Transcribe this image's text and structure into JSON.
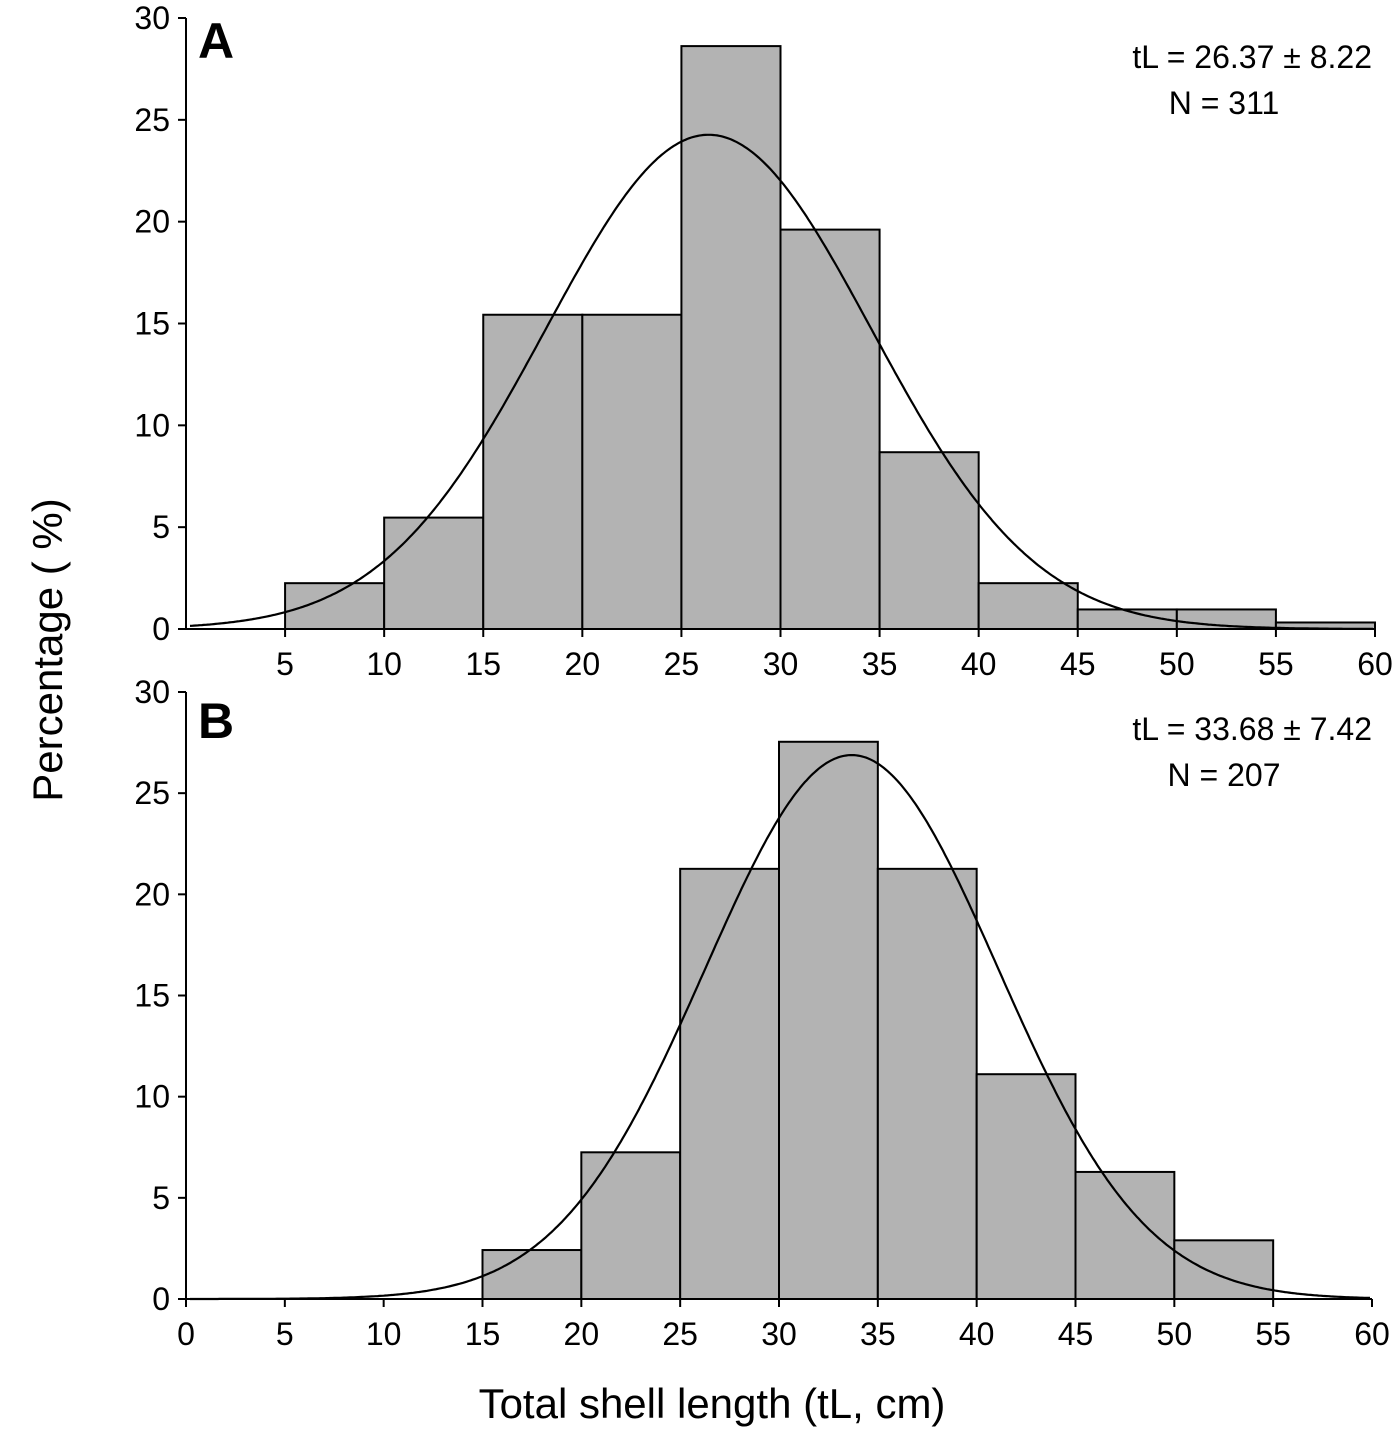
{
  "chart_data": {
    "type": "bar",
    "ylabel": "Percentage ( %)",
    "xlabel": "Total shell length (tL, cm)",
    "bar_color": "#b3b3b3",
    "edge_color": "#000000",
    "curve_color": "#000000",
    "panels": [
      {
        "label": "A",
        "stat_line1": "tL = 26.37 ± 8.22",
        "stat_line2": "N = 311",
        "xlim": [
          0,
          60
        ],
        "ylim": [
          0,
          30
        ],
        "xticks": [
          "5",
          "10",
          "15",
          "20",
          "25",
          "30",
          "35",
          "40",
          "45",
          "50",
          "55",
          "60"
        ],
        "xtick_values": [
          5,
          10,
          15,
          20,
          25,
          30,
          35,
          40,
          45,
          50,
          55,
          60
        ],
        "yticks": [
          "0",
          "5",
          "10",
          "15",
          "20",
          "25",
          "30"
        ],
        "bins": [
          [
            5,
            10
          ],
          [
            10,
            15
          ],
          [
            15,
            20
          ],
          [
            20,
            25
          ],
          [
            25,
            30
          ],
          [
            30,
            35
          ],
          [
            35,
            40
          ],
          [
            40,
            45
          ],
          [
            45,
            50
          ],
          [
            50,
            55
          ],
          [
            55,
            60
          ]
        ],
        "values": [
          2.25,
          5.47,
          15.43,
          15.43,
          28.62,
          19.61,
          8.68,
          2.25,
          0.96,
          0.96,
          0.32
        ],
        "normal_fit": {
          "mean": 26.37,
          "sd": 8.22
        }
      },
      {
        "label": "B",
        "stat_line1": "tL = 33.68 ± 7.42",
        "stat_line2": "N = 207",
        "xlim": [
          0,
          60
        ],
        "ylim": [
          0,
          30
        ],
        "xticks": [
          "0",
          "5",
          "10",
          "15",
          "20",
          "25",
          "30",
          "35",
          "40",
          "45",
          "50",
          "55",
          "60"
        ],
        "xtick_values": [
          0,
          5,
          10,
          15,
          20,
          25,
          30,
          35,
          40,
          45,
          50,
          55,
          60
        ],
        "yticks": [
          "0",
          "5",
          "10",
          "15",
          "20",
          "25",
          "30"
        ],
        "bins": [
          [
            15,
            20
          ],
          [
            20,
            25
          ],
          [
            25,
            30
          ],
          [
            30,
            35
          ],
          [
            35,
            40
          ],
          [
            40,
            45
          ],
          [
            45,
            50
          ],
          [
            50,
            55
          ]
        ],
        "values": [
          2.42,
          7.25,
          21.26,
          27.54,
          21.26,
          11.11,
          6.28,
          2.9
        ],
        "normal_fit": {
          "mean": 33.68,
          "sd": 7.42
        }
      }
    ]
  }
}
